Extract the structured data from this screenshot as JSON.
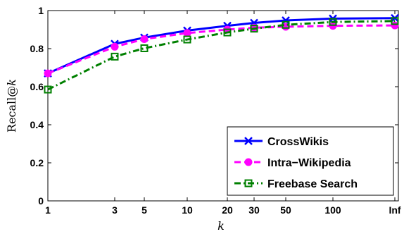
{
  "chart_data": {
    "type": "line",
    "title": "",
    "xlabel": "k",
    "ylabel": "Recall@k",
    "x_scale": "log",
    "categories": [
      "1",
      "3",
      "5",
      "10",
      "20",
      "30",
      "50",
      "100",
      "Inf"
    ],
    "x_tick_labels": [
      "1",
      "3",
      "5",
      "10",
      "20",
      "30",
      "50",
      "100",
      "Inf"
    ],
    "ylim": [
      0,
      1
    ],
    "y_ticks": [
      0,
      0.2,
      0.4,
      0.6,
      0.8,
      1
    ],
    "y_tick_labels": [
      "0",
      "0.2",
      "0.4",
      "0.6",
      "0.8",
      "1"
    ],
    "grid": false,
    "legend_position": "bottom-right",
    "series": [
      {
        "name": "CrossWikis",
        "values": [
          0.67,
          0.825,
          0.858,
          0.895,
          0.92,
          0.935,
          0.948,
          0.958,
          0.96
        ],
        "color": "#0000ff",
        "line_style": "solid",
        "marker": "x"
      },
      {
        "name": "Intra−Wikipedia",
        "values": [
          0.67,
          0.81,
          0.85,
          0.882,
          0.9,
          0.91,
          0.915,
          0.92,
          0.922
        ],
        "color": "#ff00ff",
        "line_style": "dashed",
        "marker": "circle"
      },
      {
        "name": "Freebase Search",
        "values": [
          0.585,
          0.758,
          0.802,
          0.848,
          0.885,
          0.905,
          0.925,
          0.94,
          0.945
        ],
        "color": "#008000",
        "line_style": "dash-dot",
        "marker": "square"
      }
    ]
  }
}
